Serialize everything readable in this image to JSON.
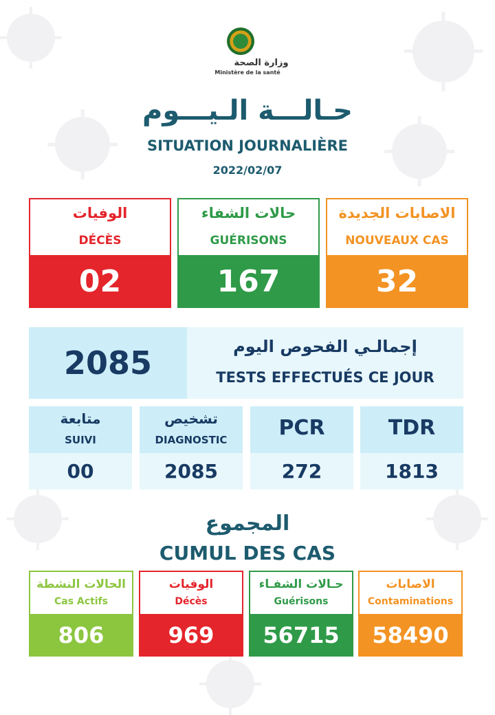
{
  "header": {
    "ministry_ar": "وزارة الصحة",
    "ministry_fr": "Ministère de la santé",
    "title_ar": "حـالـــة الـيـــوم",
    "title_fr": "SITUATION JOURNALIÈRE",
    "date": "2022/02/07"
  },
  "daily": [
    {
      "ar": "الوفيات",
      "fr": "DÉCÈS",
      "value": "02",
      "color": "#e4252b"
    },
    {
      "ar": "حالات الشفاء",
      "fr": "GUÉRISONS",
      "value": "167",
      "color": "#2f9a48"
    },
    {
      "ar": "الاصابات الجديدة",
      "fr": "NOUVEAUX CAS",
      "value": "32",
      "color": "#f39323"
    }
  ],
  "tests": {
    "total": "2085",
    "label_ar": "إجمالـي الفحوص اليوم",
    "label_fr": "TESTS EFFECTUÉS CE JOUR",
    "columns": [
      {
        "ar": "متابعة",
        "fr": "SUIVI",
        "value": "00"
      },
      {
        "ar": "تشخيص",
        "fr": "DIAGNOSTIC",
        "value": "2085"
      },
      {
        "label": "PCR",
        "value": "272"
      },
      {
        "label": "TDR",
        "value": "1813"
      }
    ]
  },
  "cumul": {
    "title_ar": "المجموع",
    "title_fr": "CUMUL DES CAS",
    "items": [
      {
        "ar": "الحالات النشطة",
        "fr": "Cas Actifs",
        "value": "806",
        "color": "#8cc63f"
      },
      {
        "ar": "الوفيات",
        "fr": "Décès",
        "value": "969",
        "color": "#e4252b"
      },
      {
        "ar": "حـالات الشفـاء",
        "fr": "Guérisons",
        "value": "56715",
        "color": "#2f9a48"
      },
      {
        "ar": "الاصابات",
        "fr": "Contaminations",
        "value": "58490",
        "color": "#f39323"
      }
    ]
  },
  "icons": {
    "logo": "ministry-emblem-icon",
    "background": "virus-icon"
  }
}
